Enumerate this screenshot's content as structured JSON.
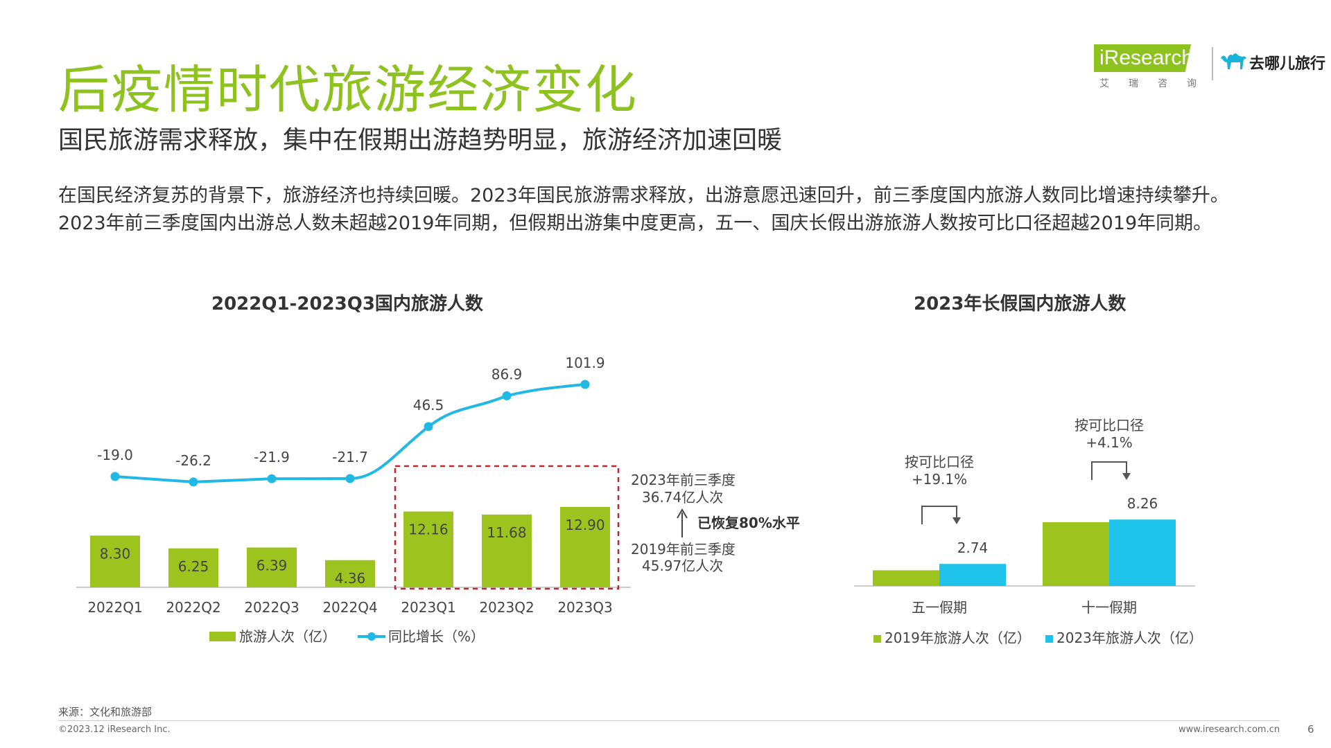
{
  "header": {
    "title": "后疫情时代旅游经济变化",
    "subtitle": "国民旅游需求释放，集中在假期出游趋势明显，旅游经济加速回暖",
    "paragraph_1": "在国民经济复苏的背景下，旅游经济也持续回暖。2023年国民旅游需求释放，出游意愿迅速回升，前三季度国内旅游人数同比增速持续攀升。",
    "paragraph_2": "2023年前三季度国内出游总人数未超越2019年同期，但假期出游集中度更高，五一、国庆长假出游旅游人数按可比口径超越2019年同期。"
  },
  "logo": {
    "brand": "iResearch",
    "brand_sub": "艾瑞咨询",
    "partner": "去哪儿旅行",
    "partner_icon": "camel-icon"
  },
  "colors": {
    "green": "#9dc31e",
    "blue": "#1fc2e8",
    "line_blue": "#22b8e6",
    "title_green": "#8dc21f",
    "dashed_red": "#c0272d"
  },
  "chart_data": [
    {
      "type": "bar",
      "title": "2022Q1-2023Q3国内旅游人数",
      "categories": [
        "2022Q1",
        "2022Q2",
        "2022Q3",
        "2022Q4",
        "2023Q1",
        "2023Q2",
        "2023Q3"
      ],
      "series": [
        {
          "name": "旅游人次（亿）",
          "type": "bar",
          "values": [
            8.3,
            6.25,
            6.39,
            4.36,
            12.16,
            11.68,
            12.9
          ],
          "labels": [
            "8.30",
            "6.25",
            "6.39",
            "4.36",
            "12.16",
            "11.68",
            "12.90"
          ]
        },
        {
          "name": "同比增长（%）",
          "type": "line",
          "values": [
            -19.0,
            -26.2,
            -21.9,
            -21.7,
            46.5,
            86.9,
            101.9
          ],
          "labels": [
            "-19.0",
            "-26.2",
            "-21.9",
            "-21.7",
            "46.5",
            "86.9",
            "101.9"
          ]
        }
      ],
      "legend_position": "bottom",
      "annotations": {
        "a2023_line1": "2023年前三季度",
        "a2023_line2": "36.74亿人次",
        "recovered": "已恢复80%水平",
        "a2019_line1": "2019年前三季度",
        "a2019_line2": "45.97亿人次"
      }
    },
    {
      "type": "bar",
      "title": "2023年长假国内旅游人数",
      "categories": [
        "五一假期",
        "十一假期"
      ],
      "series": [
        {
          "name": "2019年旅游人次（亿）",
          "values": [
            1.95,
            7.93
          ]
        },
        {
          "name": "2023年旅游人次（亿）",
          "values": [
            2.74,
            8.26
          ],
          "labels": [
            "2.74",
            "8.26"
          ]
        }
      ],
      "legend_position": "bottom",
      "annotations": {
        "may_line1": "按可比口径",
        "may_line2": "+19.1%",
        "oct_line1": "按可比口径",
        "oct_line2": "+4.1%"
      }
    }
  ],
  "footer": {
    "source": "来源：文化和旅游部",
    "copyright": "©2023.12 iResearch Inc.",
    "url": "www.iresearch.com.cn",
    "page": "6"
  }
}
